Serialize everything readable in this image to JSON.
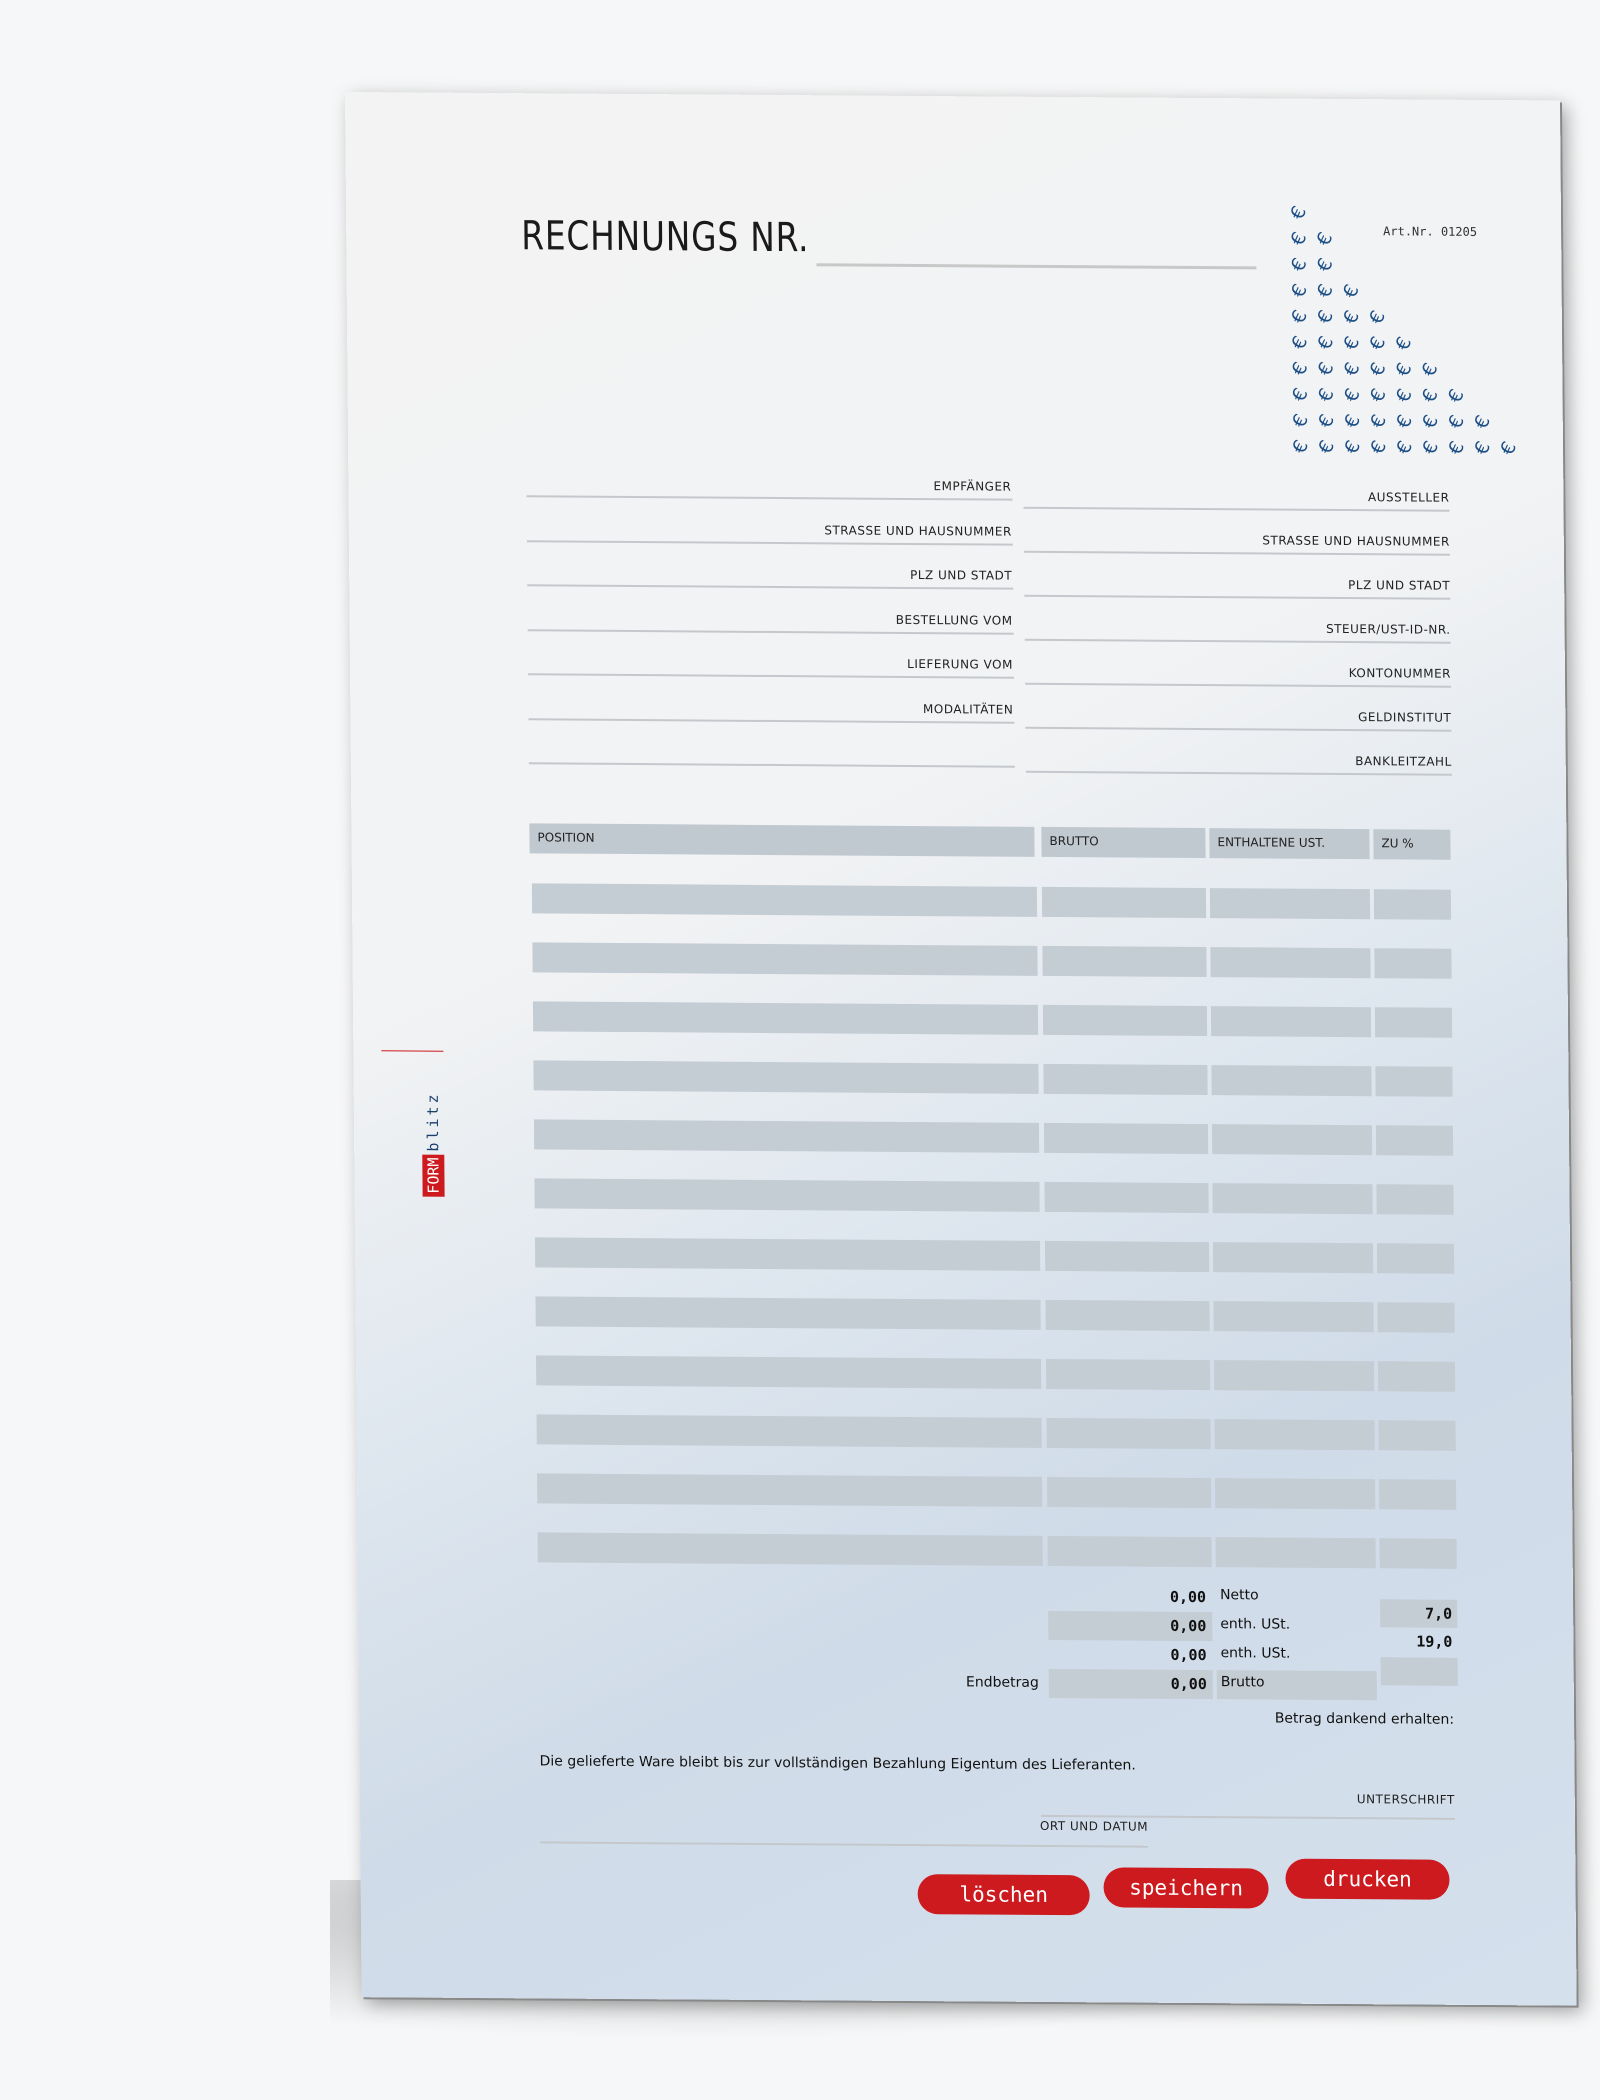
{
  "document": {
    "title": "RECHNUNGS NR.",
    "art_nr": "Art.Nr. 01205",
    "logo": {
      "part1": "FORM",
      "part2": "blitz",
      "color": "#cc1a1e"
    },
    "euro_pattern_symbol": "€",
    "recipient_fields": [
      "EMPFÄNGER",
      "STRASSE UND HAUSNUMMER",
      "PLZ UND STADT",
      "BESTELLUNG VOM",
      "LIEFERUNG VOM",
      "MODALITÄTEN"
    ],
    "issuer_fields": [
      "AUSSTELLER",
      "STRASSE UND HAUSNUMMER",
      "PLZ UND STADT",
      "STEUER/UST-ID-NR.",
      "KONTONUMMER",
      "GELDINSTITUT",
      "BANKLEITZAHL"
    ],
    "table": {
      "headers": [
        "POSITION",
        "BRUTTO",
        "ENTHALTENE UST.",
        "ZU %"
      ],
      "row_count": 12
    },
    "totals": {
      "netto": {
        "value": "0,00",
        "label": "Netto"
      },
      "ust7": {
        "value": "0,00",
        "label": "enth. USt.",
        "rate": "7,0"
      },
      "ust19": {
        "value": "0,00",
        "label": "enth. USt.",
        "rate": "19,0"
      },
      "brutto": {
        "value": "0,00",
        "label": "Brutto",
        "prefix": "Endbetrag"
      }
    },
    "received_note": "Betrag dankend erhalten:",
    "ownership_note": "Die gelieferte Ware bleibt bis zur vollständigen Bezahlung Eigentum des Lieferanten.",
    "signature_label": "UNTERSCHRIFT",
    "place_date_label": "ORT UND DATUM",
    "buttons": {
      "delete": "löschen",
      "save": "speichern",
      "print": "drucken"
    }
  }
}
